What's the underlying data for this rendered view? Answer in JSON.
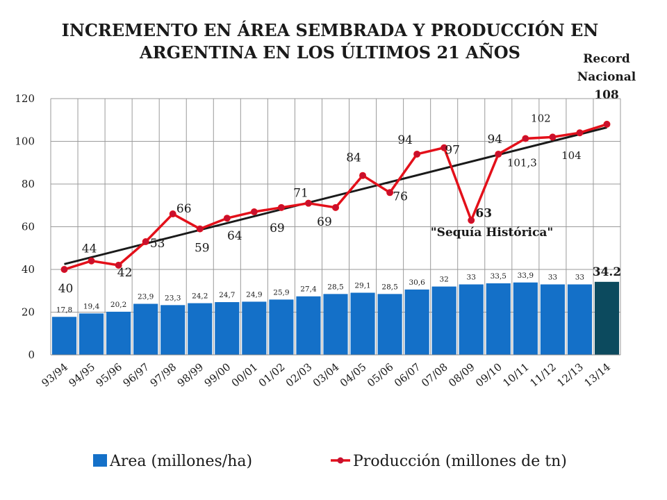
{
  "chart_data": {
    "type": "bar",
    "title_line1": "INCREMENTO EN ÁREA SEMBRADA Y PRODUCCIÓN EN",
    "title_line2": "ARGENTINA EN LOS ÚLTIMOS 21 AÑOS",
    "record_note": [
      "Record",
      "Nacional",
      "108"
    ],
    "drought_note": "\"Sequía Histórica\"",
    "categories": [
      "93/94",
      "94/95",
      "95/96",
      "96/97",
      "97/98",
      "98/99",
      "99/00",
      "00/01",
      "01/02",
      "02/03",
      "03/04",
      "04/05",
      "05/06",
      "06/07",
      "07/08",
      "08/09",
      "09/10",
      "10/11",
      "11/12",
      "12/13",
      "13/14"
    ],
    "ylim": [
      0,
      120
    ],
    "yticks": [
      0,
      20,
      40,
      60,
      80,
      100,
      120
    ],
    "grid": true,
    "series": [
      {
        "name": "Area (millones/ha)",
        "type": "bar",
        "color": "#1470c8",
        "last_color": "#0c4a5e",
        "values": [
          17.8,
          19.4,
          20.2,
          23.9,
          23.3,
          24.2,
          24.7,
          24.9,
          25.9,
          27.4,
          28.5,
          29.1,
          28.5,
          30.6,
          32,
          33,
          33.5,
          33.9,
          33,
          33,
          34.2
        ],
        "labels": [
          "17,8",
          "19,4",
          "20,2",
          "23,9",
          "23,3",
          "24,2",
          "24,7",
          "24,9",
          "25,9",
          "27,4",
          "28,5",
          "29,1",
          "28,5",
          "30,6",
          "32",
          "33",
          "33,5",
          "33,9",
          "33",
          "33",
          "34.2"
        ]
      },
      {
        "name": "Producción (millones de tn)",
        "type": "line",
        "color": "#e3101a",
        "marker_color": "#c8102e",
        "values": [
          40,
          44,
          42,
          53,
          66,
          59,
          64,
          67,
          69,
          71,
          69,
          84,
          76,
          94,
          97,
          63,
          94,
          101.3,
          102,
          104,
          108
        ],
        "labels": [
          "40",
          "44",
          "42",
          "53",
          "66",
          "59",
          "64",
          "",
          "69",
          "71",
          "69",
          "84",
          "76",
          "94",
          "97",
          "63",
          "94",
          "101,3",
          "102",
          "104",
          ""
        ]
      }
    ],
    "trendline": {
      "color": "#1a1a1a",
      "start": 42.5,
      "end": 106.5
    },
    "legend_position": "bottom"
  }
}
